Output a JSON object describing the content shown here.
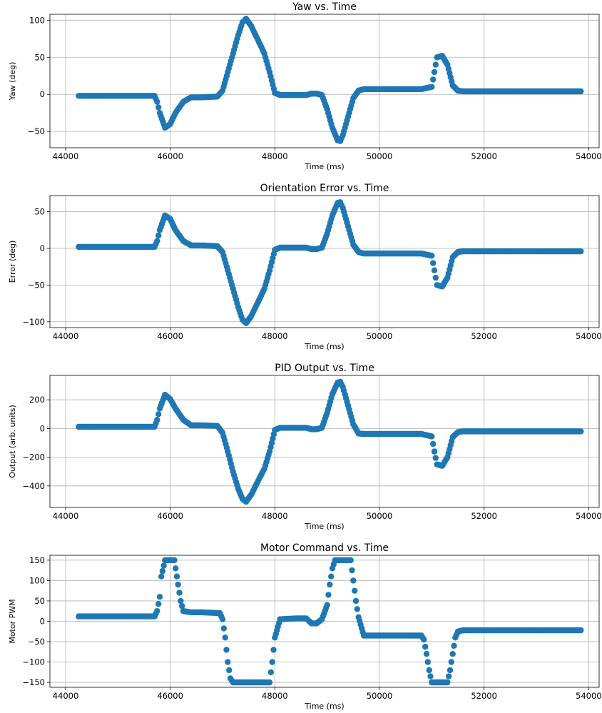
{
  "chart_data": [
    {
      "type": "scatter",
      "title": "Yaw vs. Time",
      "xlabel": "Time (ms)",
      "ylabel": "Yaw (deg)",
      "xlim": [
        43700,
        54200
      ],
      "ylim": [
        -72,
        108
      ],
      "xticks": [
        44000,
        46000,
        48000,
        50000,
        52000,
        54000
      ],
      "yticks": [
        -50,
        0,
        50,
        100
      ],
      "grid": true,
      "color": "#1f77b4",
      "series": [
        {
          "x": [
            44250,
            45700,
            45750,
            45800,
            45900,
            46000,
            46100,
            46250,
            46400,
            46600,
            46900,
            47000,
            47100,
            47200,
            47300,
            47380,
            47450,
            47550,
            47700,
            47800,
            47900,
            48000,
            48100,
            48400,
            48600,
            48700,
            48800,
            48900,
            49000,
            49100,
            49200,
            49250,
            49300,
            49400,
            49500,
            49600,
            49700,
            49800,
            50000,
            50500,
            50800,
            51000,
            51050,
            51100,
            51200,
            51300,
            51400,
            51500,
            51600,
            52000,
            53000,
            53850
          ],
          "y": [
            -2,
            -2,
            -10,
            -25,
            -45,
            -40,
            -25,
            -10,
            -4,
            -4,
            -3,
            5,
            30,
            55,
            80,
            97,
            102,
            92,
            70,
            55,
            30,
            2,
            -1,
            -1,
            -1,
            1,
            1,
            -1,
            -20,
            -45,
            -62,
            -63,
            -55,
            -30,
            -5,
            5,
            7,
            7,
            7,
            7,
            7,
            10,
            30,
            50,
            52,
            40,
            12,
            5,
            4,
            4,
            4,
            4
          ]
        }
      ]
    },
    {
      "type": "scatter",
      "title": "Orientation Error vs. Time",
      "xlabel": "Time (ms)",
      "ylabel": "Error (deg)",
      "xlim": [
        43700,
        54200
      ],
      "ylim": [
        -108,
        72
      ],
      "xticks": [
        44000,
        46000,
        48000,
        50000,
        52000,
        54000
      ],
      "yticks": [
        -100,
        -50,
        0,
        50
      ],
      "grid": true,
      "color": "#1f77b4",
      "series": [
        {
          "x": [
            44250,
            45700,
            45750,
            45800,
            45900,
            46000,
            46100,
            46250,
            46400,
            46600,
            46900,
            47000,
            47100,
            47200,
            47300,
            47380,
            47450,
            47550,
            47700,
            47800,
            47900,
            48000,
            48100,
            48400,
            48600,
            48700,
            48800,
            48900,
            49000,
            49100,
            49200,
            49250,
            49300,
            49400,
            49500,
            49600,
            49700,
            49800,
            50000,
            50500,
            50800,
            51000,
            51050,
            51100,
            51200,
            51300,
            51400,
            51500,
            51600,
            52000,
            53000,
            53850
          ],
          "y": [
            2,
            2,
            10,
            25,
            45,
            40,
            25,
            10,
            4,
            4,
            3,
            -5,
            -30,
            -55,
            -80,
            -97,
            -102,
            -92,
            -70,
            -55,
            -30,
            -2,
            1,
            1,
            1,
            -1,
            -1,
            1,
            20,
            45,
            62,
            63,
            55,
            30,
            5,
            -5,
            -7,
            -7,
            -7,
            -7,
            -7,
            -10,
            -30,
            -50,
            -52,
            -40,
            -12,
            -5,
            -4,
            -4,
            -4,
            -4
          ]
        }
      ]
    },
    {
      "type": "scatter",
      "title": "PID Output vs. Time",
      "xlabel": "Time (ms)",
      "ylabel": "Output (arb. units)",
      "xlim": [
        43700,
        54200
      ],
      "ylim": [
        -550,
        370
      ],
      "xticks": [
        44000,
        46000,
        48000,
        50000,
        52000,
        54000
      ],
      "yticks": [
        -400,
        -200,
        0,
        200
      ],
      "grid": true,
      "color": "#1f77b4",
      "series": [
        {
          "x": [
            44250,
            45700,
            45750,
            45800,
            45900,
            46000,
            46100,
            46250,
            46400,
            46600,
            46900,
            47000,
            47100,
            47200,
            47300,
            47380,
            47450,
            47550,
            47700,
            47800,
            47900,
            48000,
            48100,
            48400,
            48600,
            48700,
            48800,
            48900,
            49000,
            49100,
            49200,
            49250,
            49300,
            49400,
            49500,
            49600,
            49700,
            49800,
            50000,
            50500,
            50800,
            51000,
            51050,
            51100,
            51200,
            51300,
            51400,
            51500,
            51600,
            52000,
            53000,
            53850
          ],
          "y": [
            12,
            12,
            60,
            140,
            235,
            205,
            140,
            60,
            22,
            22,
            18,
            -30,
            -160,
            -300,
            -420,
            -490,
            -510,
            -460,
            -350,
            -280,
            -160,
            -10,
            5,
            5,
            5,
            -5,
            -5,
            5,
            110,
            240,
            320,
            325,
            290,
            160,
            30,
            -35,
            -38,
            -38,
            -38,
            -38,
            -38,
            -55,
            -160,
            -250,
            -260,
            -200,
            -60,
            -25,
            -20,
            -20,
            -20,
            -20
          ]
        }
      ]
    },
    {
      "type": "scatter",
      "title": "Motor Command vs. Time",
      "xlabel": "Time (ms)",
      "ylabel": "Motor PWM",
      "xlim": [
        43700,
        54200
      ],
      "ylim": [
        -162,
        162
      ],
      "xticks": [
        44000,
        46000,
        48000,
        50000,
        52000,
        54000
      ],
      "yticks": [
        -150,
        -100,
        -50,
        0,
        50,
        100,
        150
      ],
      "grid": true,
      "color": "#1f77b4",
      "series": [
        {
          "x": [
            44250,
            45700,
            45750,
            45800,
            45830,
            45900,
            46000,
            46080,
            46150,
            46200,
            46250,
            46400,
            46600,
            46950,
            47000,
            47050,
            47100,
            47150,
            47200,
            47800,
            47900,
            47950,
            48000,
            48100,
            48400,
            48600,
            48700,
            48800,
            48900,
            49000,
            49050,
            49100,
            49150,
            49200,
            49300,
            49400,
            49450,
            49500,
            49550,
            49600,
            49700,
            50500,
            50800,
            50850,
            50900,
            50950,
            51000,
            51300,
            51350,
            51400,
            51450,
            51500,
            51600,
            52000,
            53000,
            53850
          ],
          "y": [
            12,
            12,
            25,
            60,
            110,
            150,
            150,
            150,
            90,
            50,
            25,
            22,
            22,
            20,
            5,
            -40,
            -100,
            -140,
            -150,
            -150,
            -150,
            -100,
            -40,
            5,
            7,
            7,
            -5,
            -5,
            5,
            40,
            90,
            130,
            150,
            150,
            150,
            150,
            150,
            100,
            50,
            10,
            -35,
            -35,
            -35,
            -45,
            -80,
            -120,
            -150,
            -150,
            -120,
            -80,
            -40,
            -25,
            -22,
            -22,
            -22,
            -22
          ]
        }
      ]
    }
  ]
}
